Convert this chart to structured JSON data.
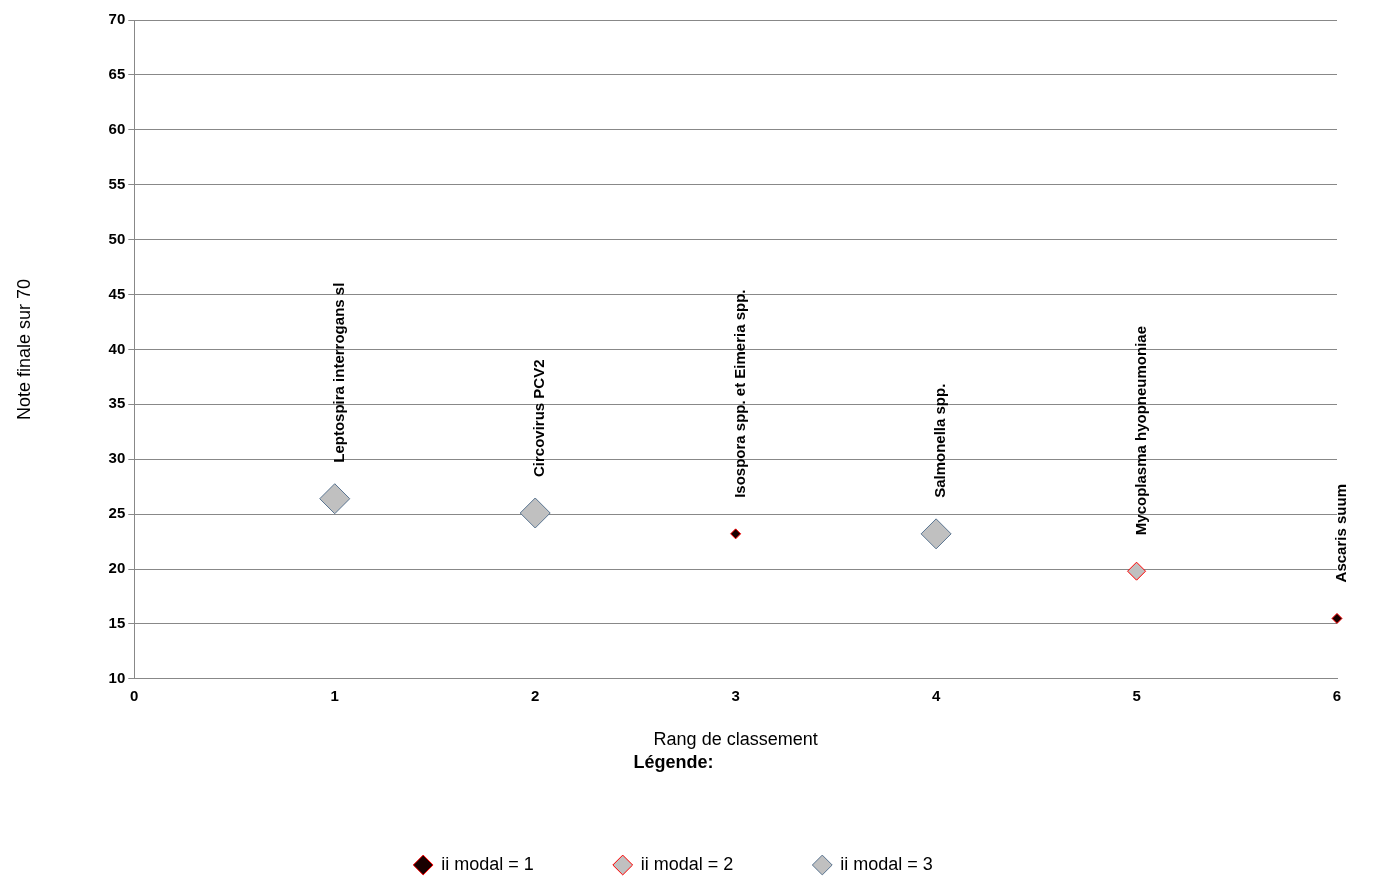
{
  "chart_data": {
    "type": "scatter",
    "xlabel": "Rang de classement",
    "ylabel": "Note finale sur 70",
    "legend_title": "Légende:",
    "xlim": [
      0,
      6
    ],
    "xticks": [
      0,
      1,
      2,
      3,
      4,
      5,
      6
    ],
    "ylim": [
      10,
      70
    ],
    "yticks": [
      10,
      15,
      20,
      25,
      30,
      35,
      40,
      45,
      50,
      55,
      60,
      65,
      70
    ],
    "grid": "y",
    "legend": "bottom",
    "marker": "diamond",
    "series": [
      {
        "name": "ii modal = 1",
        "color": "#1a0000",
        "x": [
          3,
          6
        ],
        "values": [
          23.2,
          15.5
        ]
      },
      {
        "name": "ii modal = 2",
        "color": "#c0c0c0",
        "x": [
          5
        ],
        "values": [
          19.8
        ]
      },
      {
        "name": "ii modal = 3",
        "color": "#c0c0c0",
        "x": [
          1,
          2,
          4
        ],
        "values": [
          26.4,
          25.1,
          23.2
        ]
      }
    ],
    "annotations": [
      {
        "text": "Leptospira interrogans sl",
        "x": 1,
        "y": 26.4
      },
      {
        "text": "Circovirus PCV2",
        "x": 2,
        "y": 25.1
      },
      {
        "text": "Isospora spp. et Eimeria spp.",
        "x": 3,
        "y": 23.2
      },
      {
        "text": "Salmonella spp.",
        "x": 4,
        "y": 23.2
      },
      {
        "text": "Mycoplasma hyopneumoniae",
        "x": 5,
        "y": 19.8
      },
      {
        "text": "Ascaris suum",
        "x": 6,
        "y": 15.5
      }
    ]
  }
}
